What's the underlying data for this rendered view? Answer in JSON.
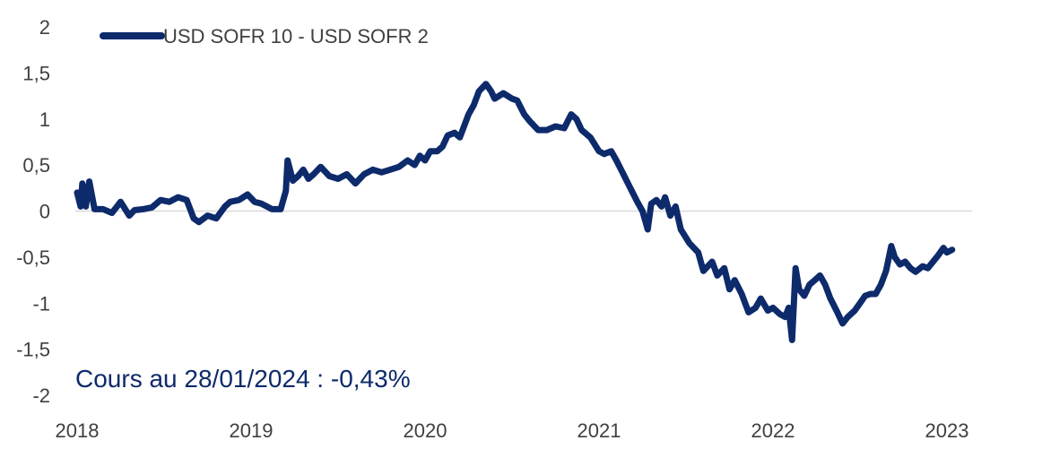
{
  "chart_data": {
    "type": "line",
    "title": "",
    "xlabel": "",
    "ylabel": "",
    "ylim": [
      -2,
      2
    ],
    "yticks": [
      "2",
      "1,5",
      "1",
      "0,5",
      "0",
      "-0,5",
      "-1",
      "-1,5",
      "-2"
    ],
    "xticks": [
      "2018",
      "2019",
      "2020",
      "2021",
      "2022",
      "2023"
    ],
    "xlim": [
      2018.0,
      2023.2
    ],
    "grid": false,
    "zero_line": true,
    "legend_position": "top-left",
    "line_color": "#0d2a6b",
    "annotation": "Cours au 28/01/2024 : -0,43%",
    "series": [
      {
        "name": "USD SOFR 10 - USD SOFR 2",
        "points": [
          [
            2018.0,
            0.2
          ],
          [
            2018.02,
            0.05
          ],
          [
            2018.03,
            0.3
          ],
          [
            2018.05,
            0.05
          ],
          [
            2018.07,
            0.32
          ],
          [
            2018.1,
            0.02
          ],
          [
            2018.15,
            0.02
          ],
          [
            2018.2,
            -0.02
          ],
          [
            2018.25,
            0.1
          ],
          [
            2018.3,
            -0.05
          ],
          [
            2018.33,
            0.01
          ],
          [
            2018.38,
            0.02
          ],
          [
            2018.43,
            0.04
          ],
          [
            2018.48,
            0.12
          ],
          [
            2018.53,
            0.1
          ],
          [
            2018.58,
            0.15
          ],
          [
            2018.63,
            0.12
          ],
          [
            2018.67,
            -0.08
          ],
          [
            2018.7,
            -0.12
          ],
          [
            2018.75,
            -0.05
          ],
          [
            2018.8,
            -0.08
          ],
          [
            2018.85,
            0.05
          ],
          [
            2018.88,
            0.1
          ],
          [
            2018.93,
            0.12
          ],
          [
            2018.98,
            0.18
          ],
          [
            2019.02,
            0.1
          ],
          [
            2019.06,
            0.08
          ],
          [
            2019.12,
            0.02
          ],
          [
            2019.17,
            0.02
          ],
          [
            2019.2,
            0.22
          ],
          [
            2019.21,
            0.55
          ],
          [
            2019.24,
            0.33
          ],
          [
            2019.27,
            0.38
          ],
          [
            2019.3,
            0.45
          ],
          [
            2019.33,
            0.35
          ],
          [
            2019.36,
            0.4
          ],
          [
            2019.4,
            0.48
          ],
          [
            2019.45,
            0.38
          ],
          [
            2019.5,
            0.35
          ],
          [
            2019.55,
            0.4
          ],
          [
            2019.6,
            0.3
          ],
          [
            2019.65,
            0.4
          ],
          [
            2019.7,
            0.45
          ],
          [
            2019.75,
            0.42
          ],
          [
            2019.8,
            0.45
          ],
          [
            2019.85,
            0.48
          ],
          [
            2019.9,
            0.55
          ],
          [
            2019.94,
            0.5
          ],
          [
            2019.97,
            0.6
          ],
          [
            2020.0,
            0.55
          ],
          [
            2020.03,
            0.65
          ],
          [
            2020.07,
            0.65
          ],
          [
            2020.1,
            0.7
          ],
          [
            2020.13,
            0.82
          ],
          [
            2020.17,
            0.85
          ],
          [
            2020.2,
            0.8
          ],
          [
            2020.25,
            1.05
          ],
          [
            2020.28,
            1.15
          ],
          [
            2020.31,
            1.3
          ],
          [
            2020.35,
            1.38
          ],
          [
            2020.38,
            1.3
          ],
          [
            2020.4,
            1.22
          ],
          [
            2020.45,
            1.28
          ],
          [
            2020.5,
            1.22
          ],
          [
            2020.53,
            1.2
          ],
          [
            2020.57,
            1.05
          ],
          [
            2020.6,
            0.98
          ],
          [
            2020.65,
            0.88
          ],
          [
            2020.7,
            0.88
          ],
          [
            2020.75,
            0.92
          ],
          [
            2020.8,
            0.9
          ],
          [
            2020.84,
            1.05
          ],
          [
            2020.87,
            1.0
          ],
          [
            2020.9,
            0.88
          ],
          [
            2020.95,
            0.8
          ],
          [
            2021.0,
            0.65
          ],
          [
            2021.03,
            0.62
          ],
          [
            2021.07,
            0.65
          ],
          [
            2021.1,
            0.55
          ],
          [
            2021.14,
            0.4
          ],
          [
            2021.18,
            0.25
          ],
          [
            2021.22,
            0.1
          ],
          [
            2021.25,
            0.0
          ],
          [
            2021.28,
            -0.2
          ],
          [
            2021.3,
            0.08
          ],
          [
            2021.33,
            0.12
          ],
          [
            2021.36,
            0.05
          ],
          [
            2021.38,
            0.15
          ],
          [
            2021.41,
            -0.05
          ],
          [
            2021.44,
            0.05
          ],
          [
            2021.47,
            -0.2
          ],
          [
            2021.52,
            -0.35
          ],
          [
            2021.57,
            -0.45
          ],
          [
            2021.6,
            -0.65
          ],
          [
            2021.65,
            -0.55
          ],
          [
            2021.68,
            -0.7
          ],
          [
            2021.72,
            -0.62
          ],
          [
            2021.75,
            -0.85
          ],
          [
            2021.78,
            -0.75
          ],
          [
            2021.82,
            -0.9
          ],
          [
            2021.86,
            -1.1
          ],
          [
            2021.9,
            -1.05
          ],
          [
            2021.93,
            -0.95
          ],
          [
            2021.97,
            -1.08
          ],
          [
            2022.0,
            -1.05
          ],
          [
            2022.04,
            -1.12
          ],
          [
            2022.07,
            -1.15
          ],
          [
            2022.09,
            -1.05
          ],
          [
            2022.11,
            -1.4
          ],
          [
            2022.13,
            -0.62
          ],
          [
            2022.15,
            -0.85
          ],
          [
            2022.18,
            -0.92
          ],
          [
            2022.21,
            -0.8
          ],
          [
            2022.24,
            -0.75
          ],
          [
            2022.27,
            -0.7
          ],
          [
            2022.3,
            -0.8
          ],
          [
            2022.33,
            -0.95
          ],
          [
            2022.37,
            -1.1
          ],
          [
            2022.4,
            -1.22
          ],
          [
            2022.43,
            -1.15
          ],
          [
            2022.47,
            -1.08
          ],
          [
            2022.5,
            -1.0
          ],
          [
            2022.53,
            -0.92
          ],
          [
            2022.56,
            -0.9
          ],
          [
            2022.59,
            -0.9
          ],
          [
            2022.62,
            -0.8
          ],
          [
            2022.65,
            -0.65
          ],
          [
            2022.68,
            -0.38
          ],
          [
            2022.7,
            -0.5
          ],
          [
            2022.73,
            -0.58
          ],
          [
            2022.76,
            -0.55
          ],
          [
            2022.79,
            -0.62
          ],
          [
            2022.82,
            -0.66
          ],
          [
            2022.86,
            -0.6
          ],
          [
            2022.89,
            -0.62
          ],
          [
            2022.92,
            -0.55
          ],
          [
            2022.95,
            -0.48
          ],
          [
            2022.98,
            -0.4
          ],
          [
            2023.0,
            -0.45
          ],
          [
            2023.03,
            -0.42
          ]
        ]
      }
    ]
  }
}
